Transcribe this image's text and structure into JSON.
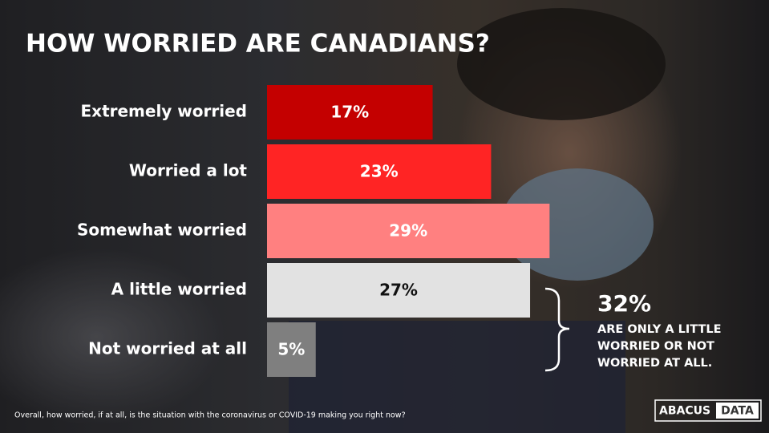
{
  "chart_data": {
    "type": "bar",
    "orientation": "horizontal",
    "title": "HOW WORRIED ARE CANADIANS?",
    "categories": [
      "Extremely worried",
      "Worried a lot",
      "Somewhat worried",
      "A little worried",
      "Not worried at all"
    ],
    "values": [
      17,
      23,
      29,
      27,
      5
    ],
    "value_labels": [
      "17%",
      "23%",
      "29%",
      "27%",
      "5%"
    ],
    "colors": [
      "#c40000",
      "#ff2424",
      "#ff8080",
      "#e2e2e2",
      "#7f7f7f"
    ],
    "annotation": {
      "headline": "32%",
      "lines": [
        "ARE ONLY A LITTLE",
        "WORRIED OR NOT",
        "WORRIED AT ALL."
      ]
    },
    "footnote": "Overall, how worried, if at all, is the situation with the coronavirus or COVID-19 making you right now?",
    "logo": [
      "ABACUS",
      "DATA"
    ]
  }
}
